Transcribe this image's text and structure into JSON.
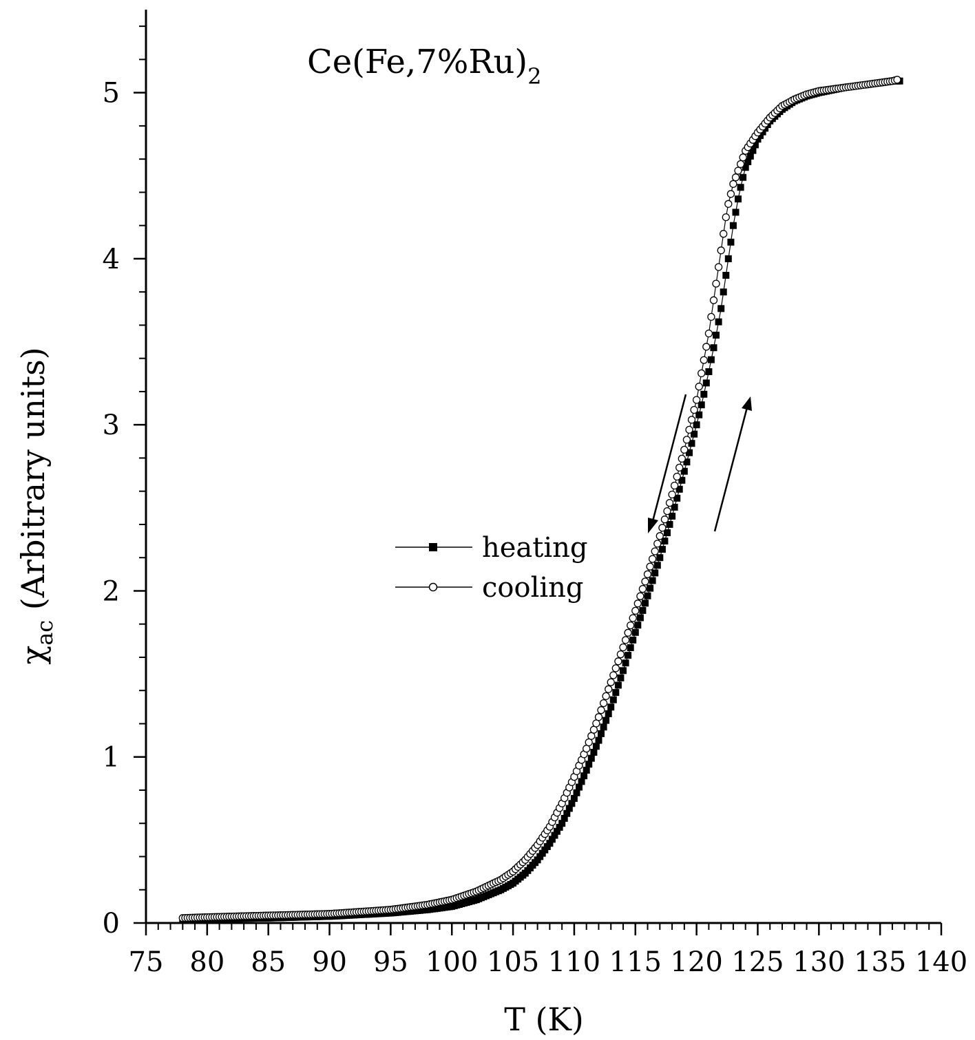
{
  "chart_data": {
    "type": "scatter",
    "title_main": "Ce(Fe,7%Ru)",
    "title_sub": "2",
    "xlabel": "T (K)",
    "ylabel_symbol": "χ",
    "ylabel_sub": "ac",
    "ylabel_rest": "(Arbitrary units)",
    "xlim": [
      75,
      140
    ],
    "ylim": [
      0,
      5.5
    ],
    "x_ticks": [
      "75",
      "80",
      "85",
      "90",
      "95",
      "100",
      "105",
      "110",
      "115",
      "120",
      "125",
      "130",
      "135",
      "140"
    ],
    "y_ticks": [
      "0",
      "1",
      "2",
      "3",
      "4",
      "5"
    ],
    "legend_position": "center",
    "series": [
      {
        "name": "heating",
        "marker": "filled-square",
        "x": [
          78,
          80,
          85,
          90,
          95,
          98,
          100,
          102,
          104,
          105,
          106,
          107,
          108,
          109,
          110,
          111,
          112,
          113,
          114,
          115,
          116,
          117,
          118,
          119,
          120,
          120.5,
          121,
          121.5,
          122,
          122.5,
          123,
          123.5,
          124,
          125,
          126,
          127,
          128,
          129,
          130,
          132,
          134,
          136,
          136.7
        ],
        "y": [
          0.02,
          0.025,
          0.03,
          0.04,
          0.06,
          0.08,
          0.1,
          0.14,
          0.2,
          0.24,
          0.3,
          0.38,
          0.48,
          0.6,
          0.75,
          0.92,
          1.1,
          1.3,
          1.52,
          1.75,
          1.97,
          2.2,
          2.45,
          2.72,
          3.0,
          3.15,
          3.32,
          3.5,
          3.7,
          3.95,
          4.2,
          4.4,
          4.55,
          4.72,
          4.83,
          4.9,
          4.95,
          4.98,
          5.0,
          5.03,
          5.05,
          5.07,
          5.07
        ]
      },
      {
        "name": "cooling",
        "marker": "open-circle",
        "x": [
          78,
          80,
          85,
          90,
          95,
          98,
          100,
          102,
          104,
          105,
          106,
          107,
          108,
          109,
          110,
          111,
          112,
          113,
          114,
          115,
          116,
          117,
          118,
          119,
          120,
          120.5,
          121,
          121.5,
          122,
          122.5,
          123,
          123.5,
          124,
          125,
          126,
          127,
          128,
          129,
          130,
          132,
          134,
          136,
          136.5
        ],
        "y": [
          0.03,
          0.035,
          0.045,
          0.055,
          0.08,
          0.11,
          0.14,
          0.19,
          0.26,
          0.31,
          0.38,
          0.47,
          0.58,
          0.72,
          0.88,
          1.05,
          1.24,
          1.45,
          1.66,
          1.88,
          2.1,
          2.33,
          2.58,
          2.85,
          3.15,
          3.35,
          3.55,
          3.8,
          4.05,
          4.3,
          4.45,
          4.55,
          4.65,
          4.76,
          4.85,
          4.92,
          4.96,
          4.99,
          5.01,
          5.03,
          5.05,
          5.07,
          5.08
        ]
      }
    ]
  }
}
